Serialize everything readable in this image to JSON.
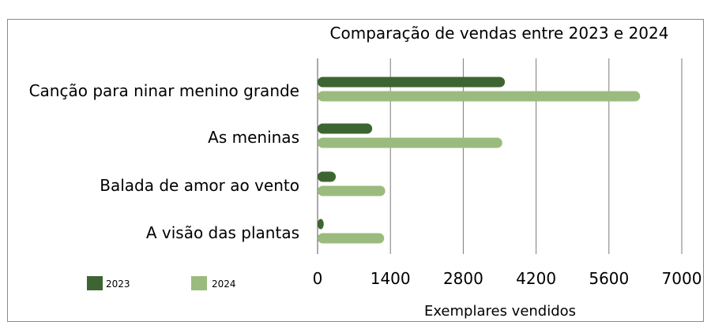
{
  "chart_data": {
    "type": "bar",
    "orientation": "horizontal",
    "title": "Comparação de vendas entre 2023 e 2024",
    "xlabel": "Exemplares vendidos",
    "ylabel": "",
    "categories": [
      "Canção para ninar menino grande",
      "As meninas",
      "Balada de amor ao vento",
      "A visão das plantas"
    ],
    "series": [
      {
        "name": "2023",
        "color": "#3d6531",
        "values": [
          3600,
          1050,
          350,
          100
        ]
      },
      {
        "name": "2024",
        "color": "#9bbb7e",
        "values": [
          6200,
          3550,
          1300,
          1280
        ]
      }
    ],
    "xlim": [
      0,
      7000
    ],
    "xticks": [
      "0",
      "1400",
      "2800",
      "4200",
      "5600",
      "7000"
    ],
    "grid": true,
    "legend_position": "bottom-left"
  }
}
